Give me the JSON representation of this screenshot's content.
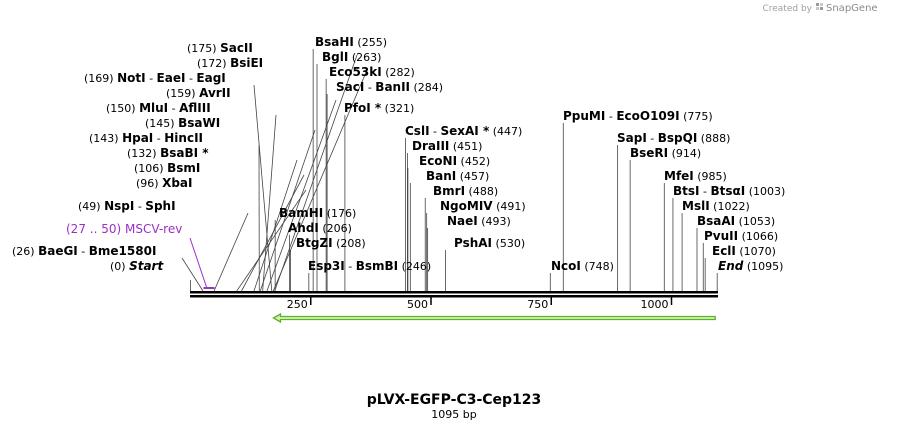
{
  "credit": {
    "prefix": "Created by",
    "brand": "SnapGene"
  },
  "map": {
    "name": "pLVX-EGFP-C3-Cep123",
    "length_label": "1095 bp",
    "length_bp": 1095,
    "axis_ticks": [
      {
        "bp": 250,
        "label": "250"
      },
      {
        "bp": 500,
        "label": "500"
      },
      {
        "bp": 750,
        "label": "750"
      },
      {
        "bp": 1000,
        "label": "1000"
      }
    ],
    "colors": {
      "backbone": "#000000",
      "feature": "#9b30c8",
      "arrow_fill": "#d9f2b4",
      "arrow_stroke": "#59b32a"
    }
  },
  "features": [
    {
      "name": "MSCV-rev",
      "range": "(27 .. 50)",
      "start": 27,
      "end": 50
    }
  ],
  "arrow": {
    "start": 185,
    "end": 1095,
    "direction": "reverse"
  },
  "sites": [
    {
      "id": "start",
      "names": [
        "Start"
      ],
      "pos": 0,
      "pos_label": "(0)",
      "italic": true
    },
    {
      "id": "baegi",
      "names": [
        "BaeGI",
        "Bme1580I"
      ],
      "pos": 26,
      "pos_label": "(26)"
    },
    {
      "id": "nspi",
      "names": [
        "NspI",
        "SphI"
      ],
      "pos": 49,
      "pos_label": "(49)"
    },
    {
      "id": "xbai",
      "names": [
        "XbaI"
      ],
      "pos": 96,
      "pos_label": "(96)"
    },
    {
      "id": "bsmi",
      "names": [
        "BsmI"
      ],
      "pos": 106,
      "pos_label": "(106)"
    },
    {
      "id": "bsabi",
      "names": [
        "BsaBI *"
      ],
      "pos": 132,
      "pos_label": "(132)"
    },
    {
      "id": "hpai",
      "names": [
        "HpaI",
        "HincII"
      ],
      "pos": 143,
      "pos_label": "(143)"
    },
    {
      "id": "bsawi",
      "names": [
        "BsaWI"
      ],
      "pos": 145,
      "pos_label": "(145)"
    },
    {
      "id": "mlui",
      "names": [
        "MluI",
        "AflIII"
      ],
      "pos": 150,
      "pos_label": "(150)"
    },
    {
      "id": "avrii",
      "names": [
        "AvrII"
      ],
      "pos": 159,
      "pos_label": "(159)"
    },
    {
      "id": "noti",
      "names": [
        "NotI",
        "EaeI",
        "EagI"
      ],
      "pos": 169,
      "pos_label": "(169)"
    },
    {
      "id": "bsiei",
      "names": [
        "BsiEI"
      ],
      "pos": 172,
      "pos_label": "(172)"
    },
    {
      "id": "sacii",
      "names": [
        "SacII"
      ],
      "pos": 175,
      "pos_label": "(175)"
    },
    {
      "id": "bamhi",
      "names": [
        "BamHI"
      ],
      "pos": 176,
      "pos_label": "(176)"
    },
    {
      "id": "ahdi",
      "names": [
        "AhdI"
      ],
      "pos": 206,
      "pos_label": "(206)"
    },
    {
      "id": "btgzi",
      "names": [
        "BtgZI"
      ],
      "pos": 208,
      "pos_label": "(208)"
    },
    {
      "id": "esp3i",
      "names": [
        "Esp3I",
        "BsmBI"
      ],
      "pos": 246,
      "pos_label": "(246)"
    },
    {
      "id": "bsahi",
      "names": [
        "BsaHI"
      ],
      "pos": 255,
      "pos_label": "(255)"
    },
    {
      "id": "bgli",
      "names": [
        "BglI"
      ],
      "pos": 263,
      "pos_label": "(263)"
    },
    {
      "id": "eco53ki",
      "names": [
        "Eco53kI"
      ],
      "pos": 282,
      "pos_label": "(282)"
    },
    {
      "id": "saci",
      "names": [
        "SacI",
        "BanII"
      ],
      "pos": 284,
      "pos_label": "(284)"
    },
    {
      "id": "pfoi",
      "names": [
        "PfoI *"
      ],
      "pos": 321,
      "pos_label": "(321)"
    },
    {
      "id": "csli",
      "names": [
        "CslI",
        "SexAI *"
      ],
      "pos": 447,
      "pos_label": "(447)"
    },
    {
      "id": "draiii",
      "names": [
        "DraIII"
      ],
      "pos": 451,
      "pos_label": "(451)"
    },
    {
      "id": "ecoi",
      "names": [
        "EcoNI"
      ],
      "pos": 452,
      "pos_label": "(452)"
    },
    {
      "id": "bani",
      "names": [
        "BanI"
      ],
      "pos": 457,
      "pos_label": "(457)"
    },
    {
      "id": "bmri",
      "names": [
        "BmrI"
      ],
      "pos": 488,
      "pos_label": "(488)"
    },
    {
      "id": "ngomiv",
      "names": [
        "NgoMIV"
      ],
      "pos": 491,
      "pos_label": "(491)"
    },
    {
      "id": "naei",
      "names": [
        "NaeI"
      ],
      "pos": 493,
      "pos_label": "(493)"
    },
    {
      "id": "pshai",
      "names": [
        "PshAI"
      ],
      "pos": 530,
      "pos_label": "(530)"
    },
    {
      "id": "ncoi",
      "names": [
        "NcoI"
      ],
      "pos": 748,
      "pos_label": "(748)"
    },
    {
      "id": "ppumi",
      "names": [
        "PpuMI",
        "EcoO109I"
      ],
      "pos": 775,
      "pos_label": "(775)"
    },
    {
      "id": "sapi",
      "names": [
        "SapI",
        "BspQI"
      ],
      "pos": 888,
      "pos_label": "(888)"
    },
    {
      "id": "bseri",
      "names": [
        "BseRI"
      ],
      "pos": 914,
      "pos_label": "(914)"
    },
    {
      "id": "mfei",
      "names": [
        "MfeI"
      ],
      "pos": 985,
      "pos_label": "(985)"
    },
    {
      "id": "btsi",
      "names": [
        "BtsI",
        "BtsαI"
      ],
      "pos": 1003,
      "pos_label": "(1003)"
    },
    {
      "id": "msli",
      "names": [
        "MslI"
      ],
      "pos": 1022,
      "pos_label": "(1022)"
    },
    {
      "id": "bsaai",
      "names": [
        "BsaAI"
      ],
      "pos": 1053,
      "pos_label": "(1053)"
    },
    {
      "id": "pvuii",
      "names": [
        "PvuII"
      ],
      "pos": 1066,
      "pos_label": "(1066)"
    },
    {
      "id": "ecli",
      "names": [
        "EclI"
      ],
      "pos": 1070,
      "pos_label": "(1070)"
    },
    {
      "id": "end",
      "names": [
        "End"
      ],
      "pos": 1095,
      "pos_label": "(1095)",
      "italic": true
    }
  ]
}
